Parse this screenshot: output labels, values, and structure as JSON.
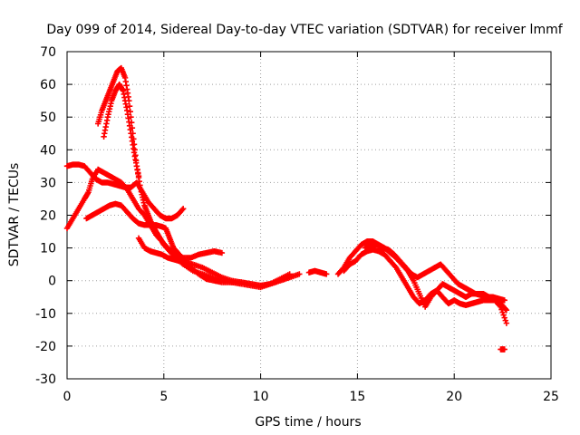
{
  "chart_data": {
    "type": "scatter",
    "title": "Day 099 of 2014, Sidereal Day-to-day VTEC variation (SDTVAR) for receiver lmmf",
    "xlabel": "GPS time / hours",
    "ylabel": "SDTVAR / TECUs",
    "xlim": [
      0,
      25
    ],
    "ylim": [
      -30,
      70
    ],
    "xticks": [
      "0",
      "5",
      "10",
      "15",
      "20",
      "25"
    ],
    "yticks": [
      "-30",
      "-20",
      "-10",
      "0",
      "10",
      "20",
      "30",
      "40",
      "50",
      "60",
      "70"
    ],
    "grid": true,
    "marker": "+",
    "color": "#ff0000",
    "series": [
      {
        "name": "s1",
        "x": [
          0.0,
          0.3,
          0.6,
          0.9,
          1.2,
          1.5,
          1.8,
          2.1,
          2.4,
          2.7,
          3.0,
          3.3,
          3.6,
          3.9,
          4.2,
          4.5,
          4.8,
          5.1,
          5.4,
          5.7,
          6.0
        ],
        "y": [
          35,
          35.5,
          35.5,
          35,
          33,
          31,
          30,
          30,
          29.5,
          29,
          28.5,
          28.5,
          30,
          27,
          24,
          22,
          20,
          19,
          19,
          20,
          22
        ]
      },
      {
        "name": "s2",
        "x": [
          0.0,
          0.3,
          0.6,
          0.9,
          1.1,
          1.3,
          1.6,
          1.9,
          2.2,
          2.5,
          2.8,
          3.1,
          3.4,
          3.7,
          4.0,
          4.3,
          4.6,
          4.9,
          5.2,
          5.6,
          6.0,
          6.4,
          6.8,
          7.2,
          7.6,
          8.0
        ],
        "y": [
          16,
          19,
          22,
          25,
          27,
          31,
          34,
          33,
          32,
          31,
          30,
          28,
          25,
          22,
          20,
          17,
          14,
          12,
          10,
          8,
          7,
          7,
          8,
          8.5,
          9,
          8.5
        ]
      },
      {
        "name": "s3",
        "x": [
          1.0,
          1.3,
          1.6,
          1.9,
          2.2,
          2.5,
          2.8,
          3.1,
          3.4,
          3.7,
          4.0,
          4.3,
          4.6,
          4.9,
          5.1,
          5.3,
          5.5,
          5.8,
          6.1,
          6.4,
          6.8,
          7.2,
          7.6,
          8.0,
          8.5,
          9.0,
          9.5,
          10.0,
          10.5,
          11.0,
          11.5
        ],
        "y": [
          19,
          20,
          21,
          22,
          23,
          23.5,
          23,
          21,
          19,
          17.5,
          17,
          17,
          17,
          16.5,
          16,
          13,
          10,
          8,
          6,
          4,
          2,
          0.5,
          0,
          -0.5,
          -0.5,
          -1,
          -1.5,
          -2,
          -1,
          0,
          1
        ]
      },
      {
        "name": "s4",
        "x": [
          1.6,
          1.8,
          2.0,
          2.2,
          2.4,
          2.6,
          2.8,
          3.0,
          3.2,
          3.4,
          3.6,
          3.8,
          4.0,
          4.2,
          4.4,
          4.6,
          4.8,
          5.0,
          5.3,
          5.6,
          6.0,
          6.5,
          7.0,
          7.5,
          8.0,
          8.5,
          9.0,
          9.5,
          10.0,
          10.5,
          11.0,
          11.5,
          12.0
        ],
        "y": [
          48,
          52,
          55,
          58,
          61,
          64,
          65,
          62,
          55,
          45,
          35,
          28,
          23,
          20,
          17,
          15,
          13,
          11,
          9,
          7,
          5,
          3,
          2,
          1,
          0,
          -0.5,
          -0.5,
          -1,
          -1.5,
          -1,
          0,
          1,
          2
        ]
      },
      {
        "name": "s5",
        "x": [
          1.9,
          2.1,
          2.3,
          2.5,
          2.7,
          2.9,
          3.1,
          3.3,
          3.5,
          3.7
        ],
        "y": [
          44,
          50,
          55,
          58,
          60,
          58,
          52,
          45,
          38,
          32
        ]
      },
      {
        "name": "s6",
        "x": [
          3.7,
          4.0,
          4.3,
          4.6,
          4.9,
          5.2,
          5.5,
          5.8,
          6.1,
          6.5,
          7.0,
          7.5,
          8.0,
          8.5,
          9.0,
          9.5,
          10.0,
          10.5,
          11.0,
          11.5
        ],
        "y": [
          13,
          10,
          9,
          8.5,
          8,
          7,
          6.5,
          6,
          5.5,
          5,
          4,
          2.5,
          1,
          0,
          -0.5,
          -1,
          -1.5,
          -1,
          0.5,
          2
        ]
      },
      {
        "name": "s7",
        "x": [
          12.5,
          12.8,
          13.1,
          13.4
        ],
        "y": [
          2.5,
          3,
          2.5,
          2
        ]
      },
      {
        "name": "s8",
        "x": [
          14.0,
          14.3,
          14.6,
          14.9,
          15.2,
          15.5,
          15.8,
          16.1,
          16.4,
          16.7,
          17.0,
          17.3,
          17.6,
          17.9,
          18.2,
          18.5,
          18.8,
          19.1,
          19.4,
          19.7,
          20.0,
          20.3,
          20.6,
          20.9,
          21.2,
          21.5,
          21.8,
          22.1,
          22.4,
          22.7
        ],
        "y": [
          2,
          4,
          7,
          9,
          11,
          12,
          12,
          11,
          10,
          8.5,
          7,
          5,
          3,
          0,
          -4,
          -8,
          -5,
          -3,
          -1,
          -2,
          -3,
          -4,
          -5,
          -4,
          -4,
          -4,
          -5,
          -6,
          -8,
          -13
        ]
      },
      {
        "name": "s9",
        "x": [
          14.3,
          14.6,
          14.9,
          15.2,
          15.5,
          15.8,
          16.1,
          16.4,
          16.7,
          17.0,
          17.3,
          17.6,
          17.9,
          18.2,
          18.5,
          18.8,
          19.1,
          19.4,
          19.7,
          20.0,
          20.3,
          20.6,
          20.9,
          21.2,
          21.5,
          21.8,
          22.1,
          22.4,
          22.7
        ],
        "y": [
          3,
          5,
          6,
          8,
          9,
          9.5,
          9,
          8,
          6,
          4,
          1,
          -2,
          -5,
          -7,
          -6,
          -4,
          -3,
          -5,
          -7,
          -6,
          -7,
          -7.5,
          -7,
          -6.5,
          -6,
          -6,
          -6,
          -7,
          -9
        ]
      },
      {
        "name": "s10",
        "x": [
          15.4,
          15.7,
          16.0,
          16.3,
          16.6,
          16.9,
          17.2,
          17.5,
          17.8,
          18.1,
          18.4,
          18.7,
          19.0,
          19.3,
          19.6,
          19.9,
          20.2,
          20.5,
          20.8,
          21.1,
          21.4,
          21.7,
          22.0,
          22.3,
          22.6
        ],
        "y": [
          10,
          11,
          11,
          10,
          9.5,
          8,
          6,
          4,
          2,
          1,
          2,
          3,
          4,
          5,
          3,
          1,
          -1,
          -2,
          -3,
          -4,
          -4.5,
          -5,
          -5,
          -5.5,
          -6
        ]
      },
      {
        "name": "s11",
        "x": [
          22.4,
          22.6
        ],
        "y": [
          -21,
          -21
        ]
      }
    ]
  }
}
